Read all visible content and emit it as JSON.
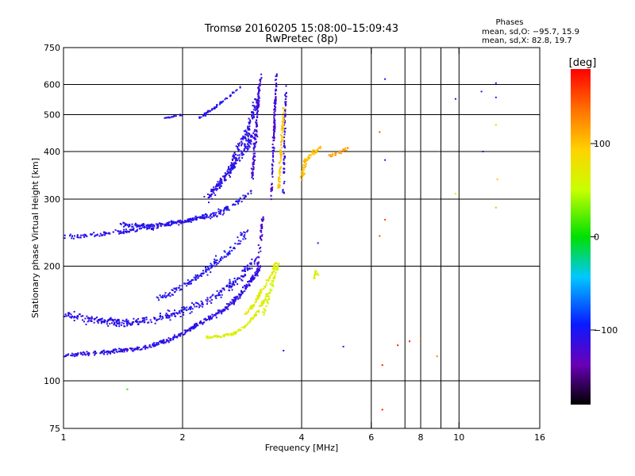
{
  "chart_data": {
    "type": "scatter",
    "title": "Tromsø 20160205 15:08:00–15:09:43",
    "subtitle": "RwPretec (8p)",
    "xlabel": "Frequency [MHz]",
    "ylabel": "Stationary phase Virtual Height [km]",
    "x_scale": "log",
    "y_scale": "log",
    "xlim": [
      1,
      16
    ],
    "ylim": [
      75,
      750
    ],
    "x_ticks": [
      1,
      2,
      4,
      6,
      8,
      10,
      16
    ],
    "x_tick_labels": [
      "1",
      "2",
      "4",
      "6",
      "8",
      "10",
      "16"
    ],
    "x_gridlines": [
      2,
      4,
      6,
      7.3,
      8,
      9,
      10
    ],
    "y_ticks": [
      75,
      100,
      200,
      300,
      400,
      500,
      600,
      750
    ],
    "y_tick_labels": [
      "75",
      "100",
      "200",
      "300",
      "400",
      "500",
      "600",
      "750"
    ],
    "grid": true,
    "stats": {
      "header": "Phases",
      "line_o": "mean, sd,O: −95.7, 15.9",
      "line_x": "mean, sd,X:  82.8, 19.7"
    },
    "colorbar": {
      "label": "[deg]",
      "range": [
        -180,
        180
      ],
      "ticks": [
        100,
        0,
        -100
      ],
      "tick_labels": [
        "100",
        "0",
        "−100"
      ]
    },
    "traces": [
      {
        "x": [
          1.0,
          1.3,
          1.6,
          1.85,
          2.05,
          2.25,
          2.5,
          2.7,
          2.85,
          3.0,
          3.15
        ],
        "y": [
          117,
          119,
          122,
          128,
          135,
          143,
          152,
          162,
          172,
          185,
          200
        ],
        "phase": -110,
        "spread": 0.018,
        "count": 460
      },
      {
        "x": [
          1.0,
          1.2,
          1.45,
          1.7,
          2.0,
          2.3,
          2.6,
          2.85,
          3.05
        ],
        "y": [
          150,
          144,
          142,
          145,
          152,
          162,
          175,
          190,
          210
        ],
        "phase": -108,
        "spread": 0.035,
        "count": 380
      },
      {
        "x": [
          1.75,
          1.9,
          2.1,
          2.3,
          2.5,
          2.7,
          2.9
        ],
        "y": [
          165,
          172,
          182,
          195,
          210,
          225,
          245
        ],
        "phase": -105,
        "spread": 0.03,
        "count": 150
      },
      {
        "x": [
          2.3,
          2.5,
          2.7,
          2.9,
          3.1,
          3.3
        ],
        "y": [
          130,
          131,
          133,
          140,
          152,
          170
        ],
        "phase": 65,
        "spread": 0.012,
        "count": 150
      },
      {
        "x": [
          2.9,
          3.05,
          3.2,
          3.35,
          3.45
        ],
        "y": [
          150,
          160,
          175,
          190,
          205
        ],
        "phase": 70,
        "spread": 0.015,
        "count": 110
      },
      {
        "x": [
          3.2,
          3.3,
          3.4,
          3.5
        ],
        "y": [
          150,
          165,
          185,
          205
        ],
        "phase": 60,
        "spread": 0.012,
        "count": 60
      },
      {
        "x": [
          3.1,
          3.15,
          3.2
        ],
        "y": [
          200,
          235,
          270
        ],
        "phase": -125,
        "spread": 0.01,
        "count": 40
      },
      {
        "x": [
          1.0,
          1.25,
          1.5,
          1.75,
          2.0,
          2.25,
          2.45,
          2.6
        ],
        "y": [
          238,
          243,
          248,
          255,
          262,
          268,
          272,
          282
        ],
        "phase": -108,
        "spread": 0.02,
        "count": 180
      },
      {
        "x": [
          1.4,
          1.6,
          1.8,
          2.0,
          2.2,
          2.4,
          2.6,
          2.8,
          3.0
        ],
        "y": [
          258,
          255,
          258,
          262,
          268,
          275,
          285,
          298,
          315
        ],
        "phase": -105,
        "spread": 0.018,
        "count": 200
      },
      {
        "x": [
          2.3,
          2.45,
          2.6,
          2.75,
          2.9,
          3.0
        ],
        "y": [
          300,
          325,
          350,
          380,
          410,
          445
        ],
        "phase": -110,
        "spread": 0.03,
        "count": 180
      },
      {
        "x": [
          2.6,
          2.75,
          2.9,
          3.0,
          3.1
        ],
        "y": [
          350,
          400,
          450,
          500,
          560
        ],
        "phase": -110,
        "spread": 0.025,
        "count": 120
      },
      {
        "x": [
          3.0,
          3.05,
          3.1,
          3.15
        ],
        "y": [
          340,
          420,
          520,
          640
        ],
        "phase": -118,
        "spread": 0.012,
        "count": 140
      },
      {
        "x": [
          3.35,
          3.4,
          3.45
        ],
        "y": [
          300,
          420,
          640
        ],
        "phase": -118,
        "spread": 0.008,
        "count": 120
      },
      {
        "x": [
          3.6,
          3.62,
          3.65
        ],
        "y": [
          310,
          440,
          600
        ],
        "phase": -115,
        "spread": 0.008,
        "count": 70
      },
      {
        "x": [
          3.5,
          3.55,
          3.6
        ],
        "y": [
          320,
          400,
          520
        ],
        "phase": 100,
        "spread": 0.01,
        "count": 90
      },
      {
        "x": [
          4.0,
          4.1,
          4.3,
          4.5
        ],
        "y": [
          340,
          380,
          400,
          410
        ],
        "phase": 100,
        "spread": 0.02,
        "count": 80
      },
      {
        "x": [
          4.7,
          5.0,
          5.3
        ],
        "y": [
          390,
          400,
          410
        ],
        "phase": 115,
        "spread": 0.015,
        "count": 30
      },
      {
        "x": [
          2.2,
          2.4,
          2.6,
          2.8
        ],
        "y": [
          490,
          520,
          555,
          590
        ],
        "phase": -105,
        "spread": 0.01,
        "count": 60
      },
      {
        "x": [
          1.8,
          1.9,
          2.0
        ],
        "y": [
          490,
          495,
          500
        ],
        "phase": -110,
        "spread": 0.006,
        "count": 20
      },
      {
        "x": [
          4.3,
          4.35,
          4.4
        ],
        "y": [
          185,
          195,
          190
        ],
        "phase": 70,
        "spread": 0.01,
        "count": 15
      }
    ],
    "isolated_points": [
      {
        "x": 1.45,
        "y": 95,
        "phase": 10
      },
      {
        "x": 6.4,
        "y": 110,
        "phase": 170
      },
      {
        "x": 6.4,
        "y": 84,
        "phase": 170
      },
      {
        "x": 7.0,
        "y": 124,
        "phase": 170
      },
      {
        "x": 7.5,
        "y": 127,
        "phase": 170
      },
      {
        "x": 8.0,
        "y": 129,
        "phase": 140
      },
      {
        "x": 8.8,
        "y": 116,
        "phase": 130
      },
      {
        "x": 6.3,
        "y": 240,
        "phase": 150
      },
      {
        "x": 6.5,
        "y": 265,
        "phase": 155
      },
      {
        "x": 6.5,
        "y": 380,
        "phase": -110
      },
      {
        "x": 6.5,
        "y": 620,
        "phase": -110
      },
      {
        "x": 6.3,
        "y": 450,
        "phase": 150
      },
      {
        "x": 9.8,
        "y": 550,
        "phase": -110
      },
      {
        "x": 11.4,
        "y": 575,
        "phase": -110
      },
      {
        "x": 12.4,
        "y": 605,
        "phase": -110
      },
      {
        "x": 12.4,
        "y": 555,
        "phase": -110
      },
      {
        "x": 12.4,
        "y": 470,
        "phase": 100
      },
      {
        "x": 11.5,
        "y": 400,
        "phase": -110
      },
      {
        "x": 12.5,
        "y": 338,
        "phase": 100
      },
      {
        "x": 12.4,
        "y": 285,
        "phase": 30
      },
      {
        "x": 9.8,
        "y": 310,
        "phase": 60
      },
      {
        "x": 4.4,
        "y": 230,
        "phase": -110
      },
      {
        "x": 5.1,
        "y": 123,
        "phase": -110
      },
      {
        "x": 3.6,
        "y": 120,
        "phase": -110
      }
    ]
  }
}
